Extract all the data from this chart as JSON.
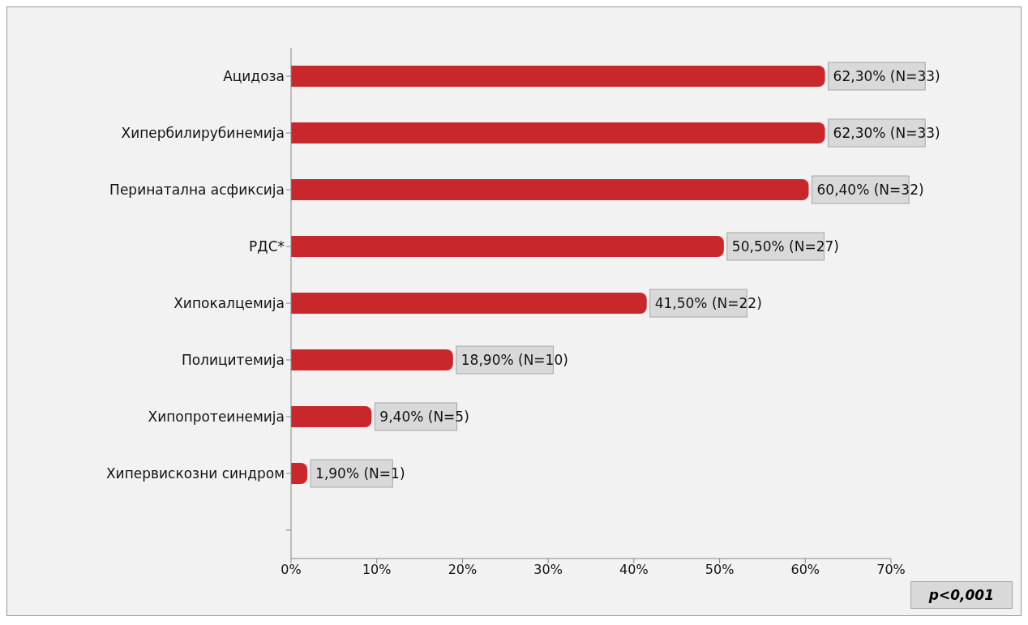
{
  "chart_data": {
    "type": "bar",
    "orientation": "horizontal",
    "categories": [
      "Ацидоза",
      "Хипербилирубинемија",
      "Перинатална асфиксија",
      "РДС*",
      "Хипокалцемија",
      "Полицитемија",
      "Хипопротеинемија",
      "Хипервискозни синдром",
      null
    ],
    "values": [
      62.3,
      62.3,
      60.4,
      50.5,
      41.5,
      18.9,
      9.4,
      1.9,
      null
    ],
    "value_labels": [
      "62,30% (N=33)",
      "62,30% (N=33)",
      "60,40% (N=32)",
      "50,50% (N=27)",
      "41,50% (N=22)",
      "18,90% (N=10)",
      "9,40% (N=5)",
      "1,90% (N=1)",
      null
    ],
    "color": "#c8282c",
    "xlim": [
      0,
      70
    ],
    "xticks": [
      {
        "value": 0,
        "label": "0%"
      },
      {
        "value": 10,
        "label": "10%"
      },
      {
        "value": 20,
        "label": "20%"
      },
      {
        "value": 30,
        "label": "30%"
      },
      {
        "value": 40,
        "label": "40%"
      },
      {
        "value": 50,
        "label": "50%"
      },
      {
        "value": 60,
        "label": "60%"
      },
      {
        "value": 70,
        "label": "70%"
      }
    ],
    "grid": false,
    "legend": false,
    "annotations": [
      "p<0,001"
    ]
  }
}
